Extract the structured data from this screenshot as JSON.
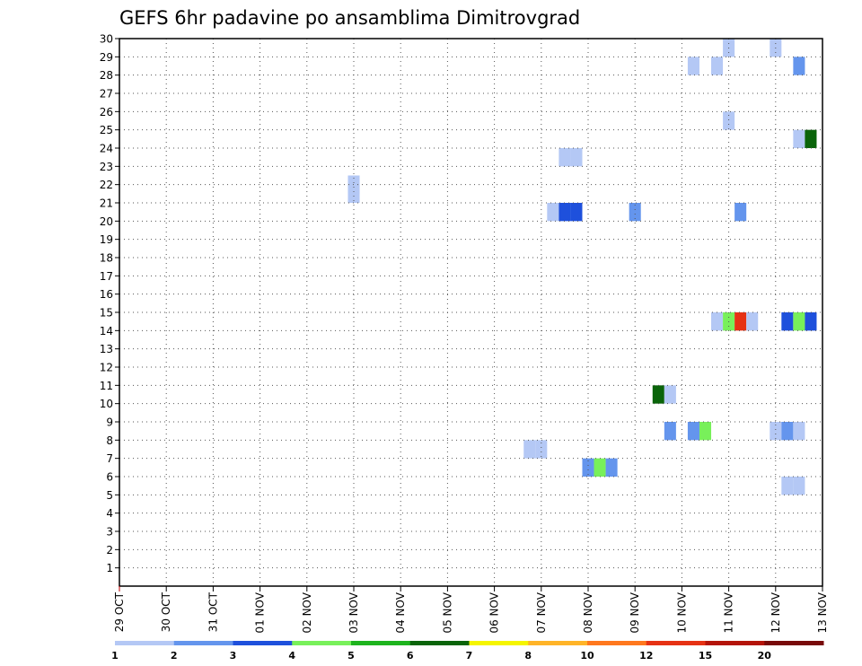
{
  "chart_data": {
    "type": "heatmap",
    "title": "GEFS 6hr padavine po ansamblima Dimitrovgrad",
    "x_tick_labels": [
      "29 OCT",
      "30 OCT",
      "31 OCT",
      "01 NOV",
      "02 NOV",
      "03 NOV",
      "04 NOV",
      "05 NOV",
      "06 NOV",
      "07 NOV",
      "08 NOV",
      "09 NOV",
      "10 NOV",
      "11 NOV",
      "12 NOV",
      "13 NOV"
    ],
    "y_tick_labels": [
      "1",
      "2",
      "3",
      "4",
      "5",
      "6",
      "7",
      "8",
      "9",
      "10",
      "11",
      "12",
      "13",
      "14",
      "15",
      "16",
      "17",
      "18",
      "19",
      "20",
      "21",
      "22",
      "23",
      "24",
      "25",
      "26",
      "27",
      "28",
      "29",
      "30"
    ],
    "xlim": [
      0,
      15
    ],
    "ylim": [
      0,
      30
    ],
    "grid": true,
    "colorbar": {
      "levels": [
        "1",
        "2",
        "3",
        "4",
        "5",
        "6",
        "7",
        "8",
        "10",
        "12",
        "15",
        "20"
      ],
      "colors": [
        "#b4c8f5",
        "#6495ed",
        "#1e50dc",
        "#78f05a",
        "#1eb41e",
        "#0a640a",
        "#f5f500",
        "#ffb428",
        "#ff781e",
        "#e63214",
        "#b4140a",
        "#780a0a"
      ]
    },
    "cells": [
      {
        "day": 5.0,
        "member": 21.5,
        "value": 1
      },
      {
        "day": 5.0,
        "member": 22.0,
        "value": 1
      },
      {
        "day": 8.75,
        "member": 7.5,
        "value": 1
      },
      {
        "day": 9.0,
        "member": 7.5,
        "value": 1
      },
      {
        "day": 9.25,
        "member": 20.5,
        "value": 1
      },
      {
        "day": 9.5,
        "member": 20.5,
        "value": 3
      },
      {
        "day": 9.75,
        "member": 20.5,
        "value": 3
      },
      {
        "day": 9.5,
        "member": 23.5,
        "value": 1
      },
      {
        "day": 9.75,
        "member": 23.5,
        "value": 1
      },
      {
        "day": 10.0,
        "member": 6.5,
        "value": 2
      },
      {
        "day": 10.25,
        "member": 6.5,
        "value": 4
      },
      {
        "day": 10.5,
        "member": 6.5,
        "value": 2
      },
      {
        "day": 11.0,
        "member": 20.5,
        "value": 2
      },
      {
        "day": 11.5,
        "member": 10.5,
        "value": 6
      },
      {
        "day": 11.75,
        "member": 10.5,
        "value": 1
      },
      {
        "day": 11.75,
        "member": 8.5,
        "value": 2
      },
      {
        "day": 12.25,
        "member": 8.5,
        "value": 2
      },
      {
        "day": 12.5,
        "member": 8.5,
        "value": 4
      },
      {
        "day": 12.25,
        "member": 28.5,
        "value": 1
      },
      {
        "day": 12.75,
        "member": 28.5,
        "value": 1
      },
      {
        "day": 13.0,
        "member": 29.5,
        "value": 1
      },
      {
        "day": 13.0,
        "member": 25.5,
        "value": 1
      },
      {
        "day": 12.75,
        "member": 14.5,
        "value": 1
      },
      {
        "day": 13.0,
        "member": 14.5,
        "value": 4
      },
      {
        "day": 13.25,
        "member": 14.5,
        "value": 12
      },
      {
        "day": 13.5,
        "member": 14.5,
        "value": 1
      },
      {
        "day": 13.25,
        "member": 20.5,
        "value": 2
      },
      {
        "day": 14.0,
        "member": 29.5,
        "value": 1
      },
      {
        "day": 14.0,
        "member": 8.5,
        "value": 1
      },
      {
        "day": 14.25,
        "member": 8.5,
        "value": 2
      },
      {
        "day": 14.5,
        "member": 8.5,
        "value": 1
      },
      {
        "day": 14.25,
        "member": 5.5,
        "value": 1
      },
      {
        "day": 14.5,
        "member": 5.5,
        "value": 1
      },
      {
        "day": 14.25,
        "member": 14.5,
        "value": 3
      },
      {
        "day": 14.5,
        "member": 14.5,
        "value": 4
      },
      {
        "day": 14.75,
        "member": 14.5,
        "value": 3
      },
      {
        "day": 14.5,
        "member": 28.5,
        "value": 2
      },
      {
        "day": 14.5,
        "member": 24.5,
        "value": 1
      },
      {
        "day": 14.75,
        "member": 24.5,
        "value": 6
      }
    ]
  }
}
